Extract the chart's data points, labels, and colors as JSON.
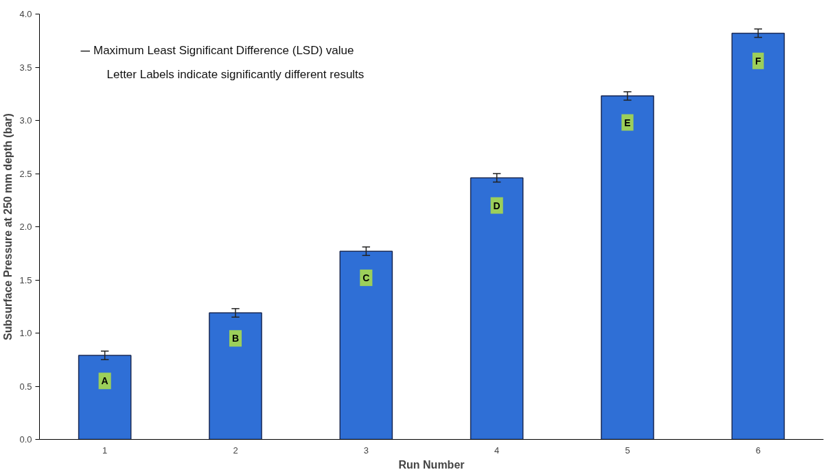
{
  "chart_data": {
    "type": "bar",
    "xlabel": "Run Number",
    "ylabel": "Subsurface Pressure at 250 mm depth (bar)",
    "categories": [
      "1",
      "2",
      "3",
      "4",
      "5",
      "6"
    ],
    "values": [
      0.79,
      1.19,
      1.77,
      2.46,
      3.23,
      3.82
    ],
    "errors": [
      0.04,
      0.04,
      0.04,
      0.04,
      0.04,
      0.04
    ],
    "color": "#2f6fd6",
    "ylim": [
      0,
      4
    ],
    "yticks": [
      {
        "value": 0,
        "label": "0.0"
      },
      {
        "value": 0.5,
        "label": "0.5"
      },
      {
        "value": 1,
        "label": "1.0"
      },
      {
        "value": 1.5,
        "label": "1.5"
      },
      {
        "value": 2,
        "label": "2.0"
      },
      {
        "value": 2.5,
        "label": "2.5"
      },
      {
        "value": 3,
        "label": "3.0"
      },
      {
        "value": 3.5,
        "label": "3.5"
      },
      {
        "value": 4,
        "label": "4.0"
      }
    ],
    "grid": false,
    "annotations": [
      "Maximum Least Significant Difference (LSD) value",
      "Letter Labels indicate significantly different results",
      {
        "text": "A",
        "x": "1",
        "y": 0.55
      },
      {
        "text": "B",
        "x": "2",
        "y": 0.95
      },
      {
        "text": "C",
        "x": "3",
        "y": 1.52
      },
      {
        "text": "D",
        "x": "4",
        "y": 2.2
      },
      {
        "text": "E",
        "x": "5",
        "y": 2.98
      },
      {
        "text": "F",
        "x": "6",
        "y": 3.56
      }
    ]
  }
}
